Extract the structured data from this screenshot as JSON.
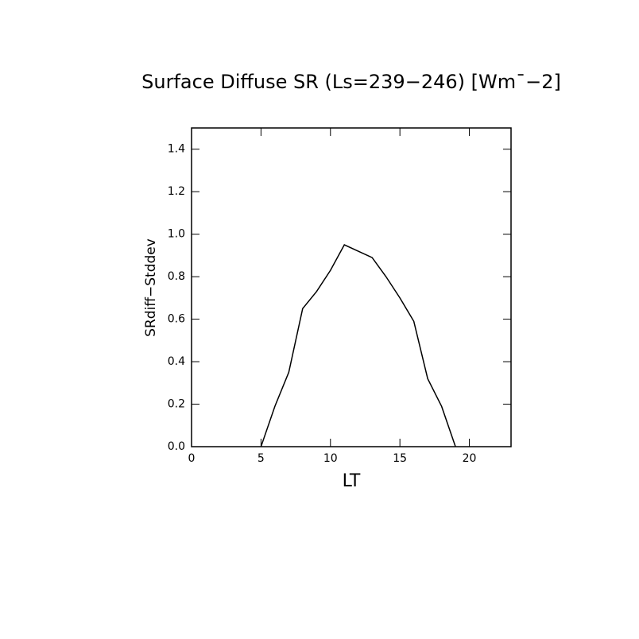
{
  "chart_data": {
    "type": "line",
    "title": "Surface Diffuse SR (Ls=239−246) [Wm¯−2]",
    "x_label": "LT",
    "y_label": "SRdiff−Stddev",
    "x": [
      5,
      6,
      7,
      8,
      9,
      10,
      11,
      12,
      13,
      14,
      15,
      16,
      17,
      18,
      19
    ],
    "series": [
      {
        "name": "SRdiff-Stddev",
        "color": "#000000",
        "values": [
          0.0,
          0.19,
          0.35,
          0.65,
          0.73,
          0.83,
          0.95,
          0.92,
          0.89,
          0.8,
          0.7,
          0.59,
          0.32,
          0.19,
          0.0
        ]
      }
    ],
    "xlim": [
      0,
      23
    ],
    "xticks": [
      0,
      5,
      10,
      15,
      20
    ],
    "ylim": [
      0,
      1.5
    ],
    "yticks": [
      {
        "value": 0,
        "label": "0.0"
      },
      {
        "value": 0.2,
        "label": "0.2"
      },
      {
        "value": 0.4,
        "label": "0.4"
      },
      {
        "value": 0.6,
        "label": "0.6"
      },
      {
        "value": 0.8,
        "label": "0.8"
      },
      {
        "value": 1.0,
        "label": "1.0"
      },
      {
        "value": 1.2,
        "label": "1.2"
      },
      {
        "value": 1.4,
        "label": "1.4"
      }
    ]
  }
}
